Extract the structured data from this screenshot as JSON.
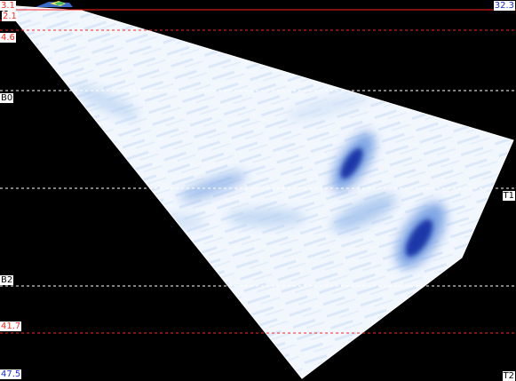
{
  "scan_view": {
    "colors": {
      "background": "#000000",
      "wedge_fill": "#eef5fd",
      "echo_light": "#a9c9ee",
      "echo_mid": "#4f7fd6",
      "echo_dark": "#1c37a8",
      "red_line": "#ff2222",
      "white_line": "#ffffff"
    },
    "labels": {
      "top_left_depth": "3.1",
      "top_right_depth": "32.3",
      "line_1": "2.1",
      "line_2": "4.6",
      "b0": "B0",
      "t1": "T1",
      "b2": "B2",
      "line_41": "41.7",
      "bottom_left_depth": "47.5",
      "t2": "T2"
    }
  }
}
